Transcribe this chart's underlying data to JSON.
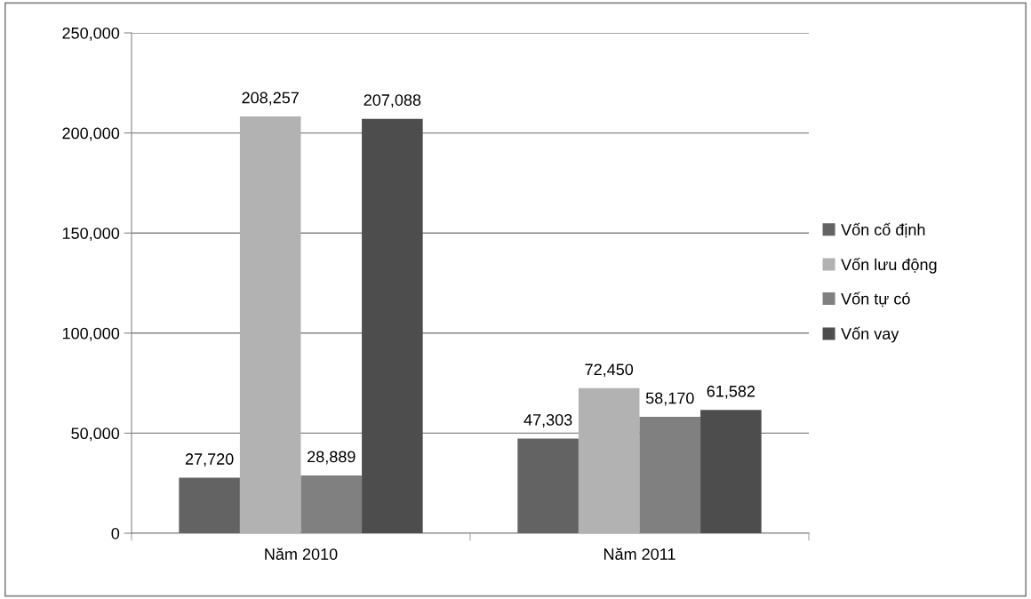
{
  "chart_data": {
    "type": "bar",
    "categories": [
      "Năm 2010",
      "Năm 2011"
    ],
    "series": [
      {
        "name": "Vốn cố định",
        "color": "#636363",
        "values": [
          27720,
          47303
        ],
        "value_labels": [
          "27,720",
          "47,303"
        ]
      },
      {
        "name": "Vốn lưu động",
        "color": "#b2b2b2",
        "values": [
          208257,
          72450
        ],
        "value_labels": [
          "208,257",
          "72,450"
        ]
      },
      {
        "name": "Vốn tự có",
        "color": "#808080",
        "values": [
          28889,
          58170
        ],
        "value_labels": [
          "28,889",
          "58,170"
        ]
      },
      {
        "name": "Vốn vay",
        "color": "#4d4d4d",
        "values": [
          207088,
          61582
        ],
        "value_labels": [
          "207,088",
          "61,582"
        ]
      }
    ],
    "ylim": [
      0,
      250000
    ],
    "yticks": [
      {
        "value": 0,
        "label": "0"
      },
      {
        "value": 50000,
        "label": "50,000"
      },
      {
        "value": 100000,
        "label": "100,000"
      },
      {
        "value": 150000,
        "label": "150,000"
      },
      {
        "value": 200000,
        "label": "200,000"
      },
      {
        "value": 250000,
        "label": "250,000"
      }
    ],
    "grid": "y",
    "legend": "right"
  }
}
